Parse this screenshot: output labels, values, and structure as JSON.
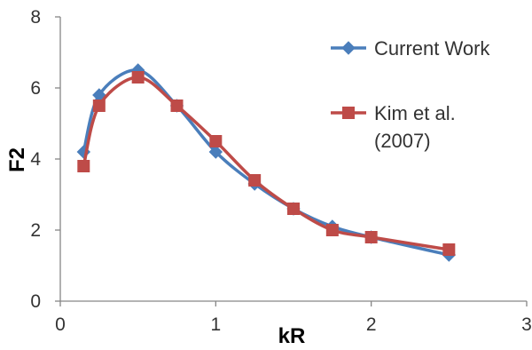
{
  "chart_data": {
    "type": "line",
    "title": "",
    "xlabel": "kR",
    "ylabel": "F2",
    "xlim": [
      0,
      3
    ],
    "ylim": [
      0,
      8
    ],
    "xticks": [
      "0",
      "1",
      "2",
      "3"
    ],
    "yticks": [
      "0",
      "2",
      "4",
      "6",
      "8"
    ],
    "grid": false,
    "legend_position": "right",
    "series": [
      {
        "name": "Current Work",
        "legend_lines": [
          "Current Work"
        ],
        "color": "#4a7ebb",
        "marker": "diamond",
        "x": [
          0.15,
          0.25,
          0.5,
          0.75,
          1.0,
          1.25,
          1.5,
          1.75,
          2.0,
          2.5
        ],
        "y": [
          4.2,
          5.8,
          6.5,
          5.5,
          4.2,
          3.3,
          2.6,
          2.1,
          1.8,
          1.3
        ]
      },
      {
        "name": "Kim et al. (2007)",
        "legend_lines": [
          "Kim et al.",
          "(2007)"
        ],
        "color": "#be4b48",
        "marker": "square",
        "x": [
          0.15,
          0.25,
          0.5,
          0.75,
          1.0,
          1.25,
          1.5,
          1.75,
          2.0,
          2.5
        ],
        "y": [
          3.8,
          5.5,
          6.3,
          5.5,
          4.5,
          3.4,
          2.6,
          2.0,
          1.8,
          1.45
        ]
      }
    ]
  }
}
